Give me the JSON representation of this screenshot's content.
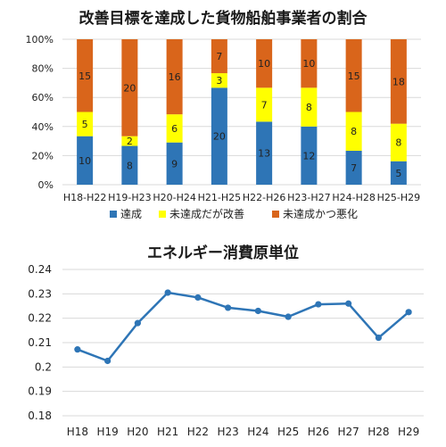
{
  "chart_data": [
    {
      "type": "bar",
      "stacked": "percent",
      "title": "改善目標を達成した貨物船舶事業者の割合",
      "categories": [
        "H18-H22",
        "H19-H23",
        "H20-H24",
        "H21-H25",
        "H22-H26",
        "H23-H27",
        "H24-H28",
        "H25-H29"
      ],
      "series": [
        {
          "name": "達成",
          "color": "#2e75b6",
          "values": [
            10,
            8,
            9,
            20,
            13,
            12,
            7,
            5
          ]
        },
        {
          "name": "未達成だが改善",
          "color": "#ffff00",
          "values": [
            5,
            2,
            6,
            3,
            7,
            8,
            8,
            8
          ]
        },
        {
          "name": "未達成かつ悪化",
          "color": "#d9651b",
          "values": [
            15,
            20,
            16,
            7,
            10,
            10,
            15,
            18
          ]
        }
      ],
      "yticks": [
        "0%",
        "20%",
        "40%",
        "60%",
        "80%",
        "100%"
      ],
      "ylim": [
        0,
        100
      ],
      "legend": "bottom",
      "grid": true
    },
    {
      "type": "line",
      "title": "エネルギー消費原単位",
      "categories": [
        "H18",
        "H19",
        "H20",
        "H21",
        "H22",
        "H23",
        "H24",
        "H25",
        "H26",
        "H27",
        "H28",
        "H29"
      ],
      "series": [
        {
          "color": "#2e75b6",
          "values": [
            0.2072,
            0.2025,
            0.218,
            0.2305,
            0.2285,
            0.2243,
            0.223,
            0.2206,
            0.2257,
            0.226,
            0.212,
            0.2225
          ]
        }
      ],
      "yticks": [
        "0.18",
        "0.19",
        "0.2",
        "0.21",
        "0.22",
        "0.23",
        "0.24"
      ],
      "ylim": [
        0.18,
        0.24
      ],
      "grid": true
    }
  ]
}
